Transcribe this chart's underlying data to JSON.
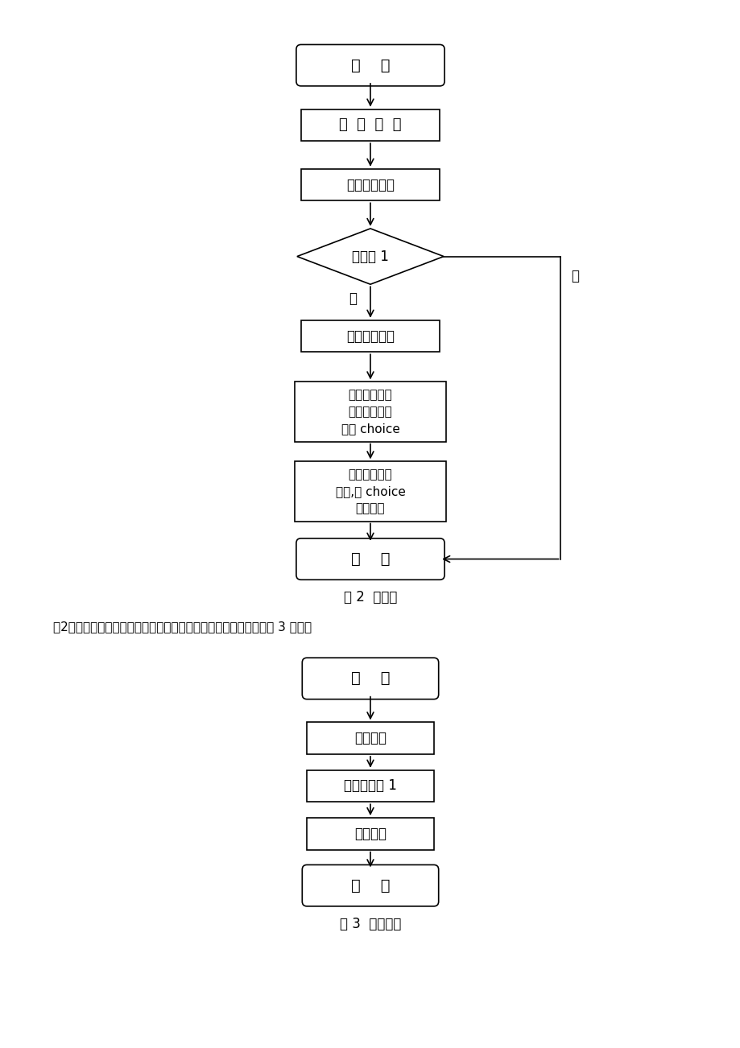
{
  "bg_color": "#ffffff",
  "line_color": "#000000",
  "text_color": "#000000",
  "d1": {
    "start_text": "开    始",
    "defint_text": "定  义  整  型",
    "load_text": "调用装载函数",
    "diamond_text": "是否为 1",
    "menu_text": "调用菜单函数",
    "assign_text": "把输入选择函\n数的返回值赋\n值给 choice",
    "run_text": "调用运行选项\n函数,把 choice\n的值带入",
    "end_text": "结    束",
    "yes_label": "是",
    "no_label": "否",
    "caption": "图 2  主函数"
  },
  "intro": "（2）录入函数：输入记录并保留到文献中，，录入函数流程图如图 3 所示。",
  "d2": {
    "start_text": "开    始",
    "input_text": "输入数据",
    "count_text": "记录条数加 1",
    "save_text": "保存记录",
    "end_text": "结    束",
    "caption": "图 3  录入函数"
  }
}
